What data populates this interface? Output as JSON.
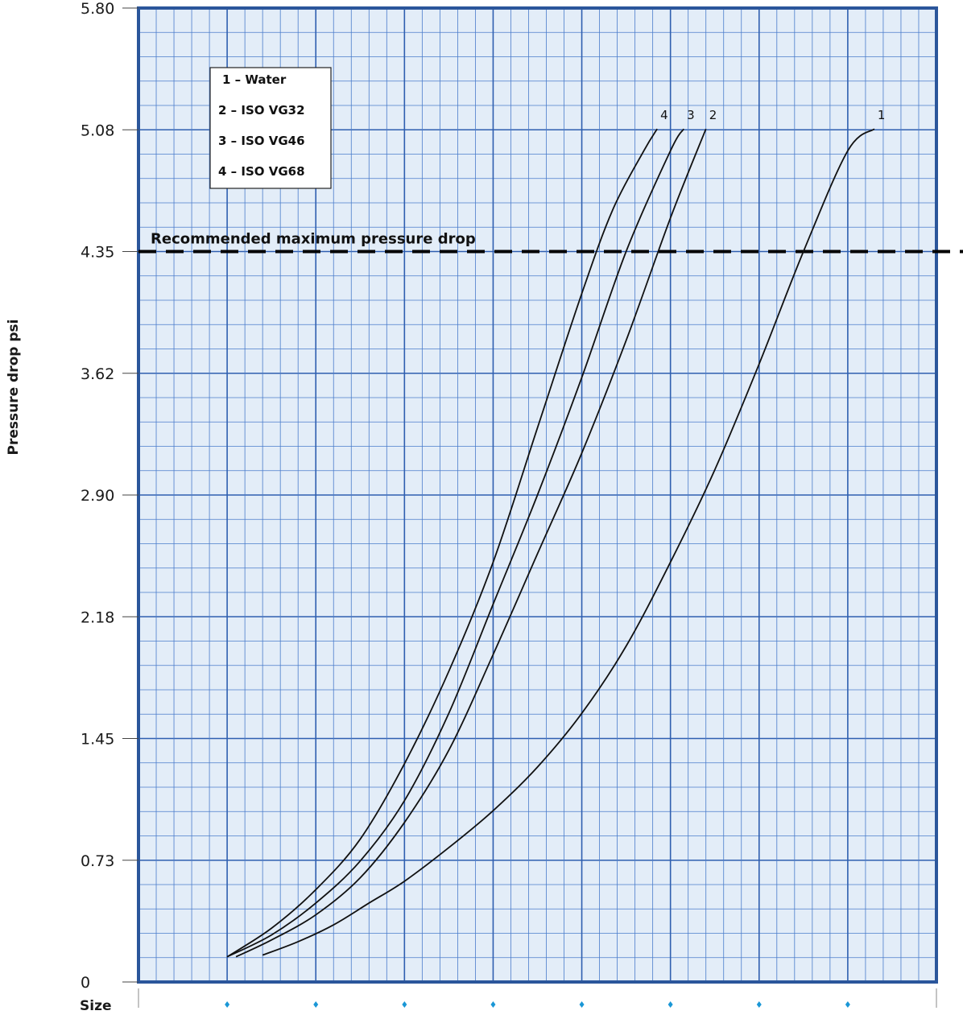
{
  "chart_data": {
    "type": "line",
    "title": "",
    "xlabel": "Size",
    "ylabel": "Pressure drop psi",
    "ylim": [
      0,
      5.8
    ],
    "yticks": [
      "0",
      "0.73",
      "1.45",
      "2.18",
      "2.90",
      "3.62",
      "4.35",
      "5.08",
      "5.80"
    ],
    "x_markers": 8,
    "xlim": [
      0,
      9
    ],
    "grid": true,
    "legend_placement": "top-left",
    "legend": [
      "1 – Water",
      "2 – ISO VG32",
      "3 – ISO VG46",
      "4 – ISO VG68"
    ],
    "reference_line": {
      "label": "Recommended maximum pressure drop",
      "y": 4.35
    },
    "series": [
      {
        "name": "1",
        "x": [
          1.4,
          1.8,
          2.2,
          2.6,
          3.0,
          3.5,
          4.0,
          4.5,
          5.0,
          5.5,
          6.0,
          6.5,
          7.0,
          7.5,
          8.0,
          8.3
        ],
        "y": [
          0.16,
          0.24,
          0.34,
          0.47,
          0.6,
          0.8,
          1.02,
          1.28,
          1.6,
          2.0,
          2.5,
          3.05,
          3.68,
          4.35,
          4.95,
          5.08
        ]
      },
      {
        "name": "2",
        "x": [
          1.1,
          1.5,
          2.0,
          2.5,
          3.0,
          3.5,
          4.0,
          4.5,
          5.0,
          5.5,
          6.0,
          6.4
        ],
        "y": [
          0.15,
          0.25,
          0.4,
          0.62,
          0.95,
          1.38,
          1.95,
          2.55,
          3.15,
          3.82,
          4.55,
          5.08
        ]
      },
      {
        "name": "3",
        "x": [
          1.0,
          1.5,
          2.0,
          2.5,
          3.0,
          3.5,
          4.0,
          4.5,
          5.0,
          5.5,
          6.0,
          6.15
        ],
        "y": [
          0.15,
          0.28,
          0.47,
          0.72,
          1.08,
          1.6,
          2.25,
          2.9,
          3.6,
          4.35,
          4.95,
          5.08
        ]
      },
      {
        "name": "4",
        "x": [
          1.0,
          1.5,
          2.0,
          2.5,
          3.0,
          3.5,
          4.0,
          4.5,
          5.0,
          5.35,
          5.7,
          5.85
        ],
        "y": [
          0.15,
          0.32,
          0.55,
          0.85,
          1.3,
          1.85,
          2.5,
          3.3,
          4.1,
          4.6,
          4.95,
          5.08
        ]
      }
    ]
  },
  "colors": {
    "plot_bg": "#e3edf8",
    "grid_major": "#2f5fb0",
    "grid_minor": "#4a7ccb",
    "frame": "#2b569b",
    "marker": "#1a97d6",
    "curve": "#111111",
    "reference": "#000000"
  }
}
